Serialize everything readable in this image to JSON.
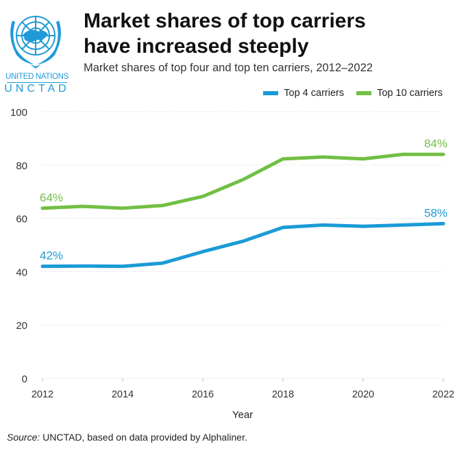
{
  "logo": {
    "icon": "un-emblem-icon",
    "line1": "UNITED NATIONS",
    "line2": "UNCTAD",
    "color": "#1f9ad6"
  },
  "header": {
    "title_line1": "Market shares of top carriers",
    "title_line2": "have increased steeply",
    "subtitle": "Market shares of top four and top ten carriers, 2012–2022"
  },
  "legend": [
    {
      "label": "Top 4 carriers",
      "color": "#1a9bd7"
    },
    {
      "label": "Top 10 carriers",
      "color": "#72bf44"
    }
  ],
  "source": {
    "prefix": "Source:",
    "text": " UNCTAD, based on data provided by Alphaliner."
  },
  "chart_data": {
    "type": "line",
    "title": "Market shares of top carriers have increased steeply",
    "subtitle": "Market shares of top four and top ten carriers, 2012–2022",
    "xlabel": "Year",
    "ylabel": "",
    "x": [
      2012,
      2013,
      2014,
      2015,
      2016,
      2017,
      2018,
      2019,
      2020,
      2021,
      2022
    ],
    "xticks": [
      "2012",
      "2014",
      "2016",
      "2018",
      "2020",
      "2022"
    ],
    "xlim": [
      2012,
      2022
    ],
    "ylim": [
      0,
      100
    ],
    "yticks": [
      "0",
      "20",
      "40",
      "60",
      "80",
      "100"
    ],
    "grid": true,
    "legend_position": "top-right",
    "series": [
      {
        "name": "Top 4 carriers",
        "color": "#1a9bd7",
        "values": [
          42,
          42.1,
          42,
          43.2,
          47.5,
          51.4,
          56.6,
          57.5,
          57,
          57.5,
          58
        ],
        "labels": [
          {
            "index": 0,
            "text": "42%"
          },
          {
            "index": 10,
            "text": "58%"
          }
        ]
      },
      {
        "name": "Top 10 carriers",
        "color": "#72bf44",
        "values": [
          63.8,
          64.5,
          63.8,
          64.8,
          68.2,
          74.5,
          82.3,
          83,
          82.3,
          84,
          84
        ],
        "labels": [
          {
            "index": 0,
            "text": "64%"
          },
          {
            "index": 10,
            "text": "84%"
          }
        ]
      }
    ]
  }
}
